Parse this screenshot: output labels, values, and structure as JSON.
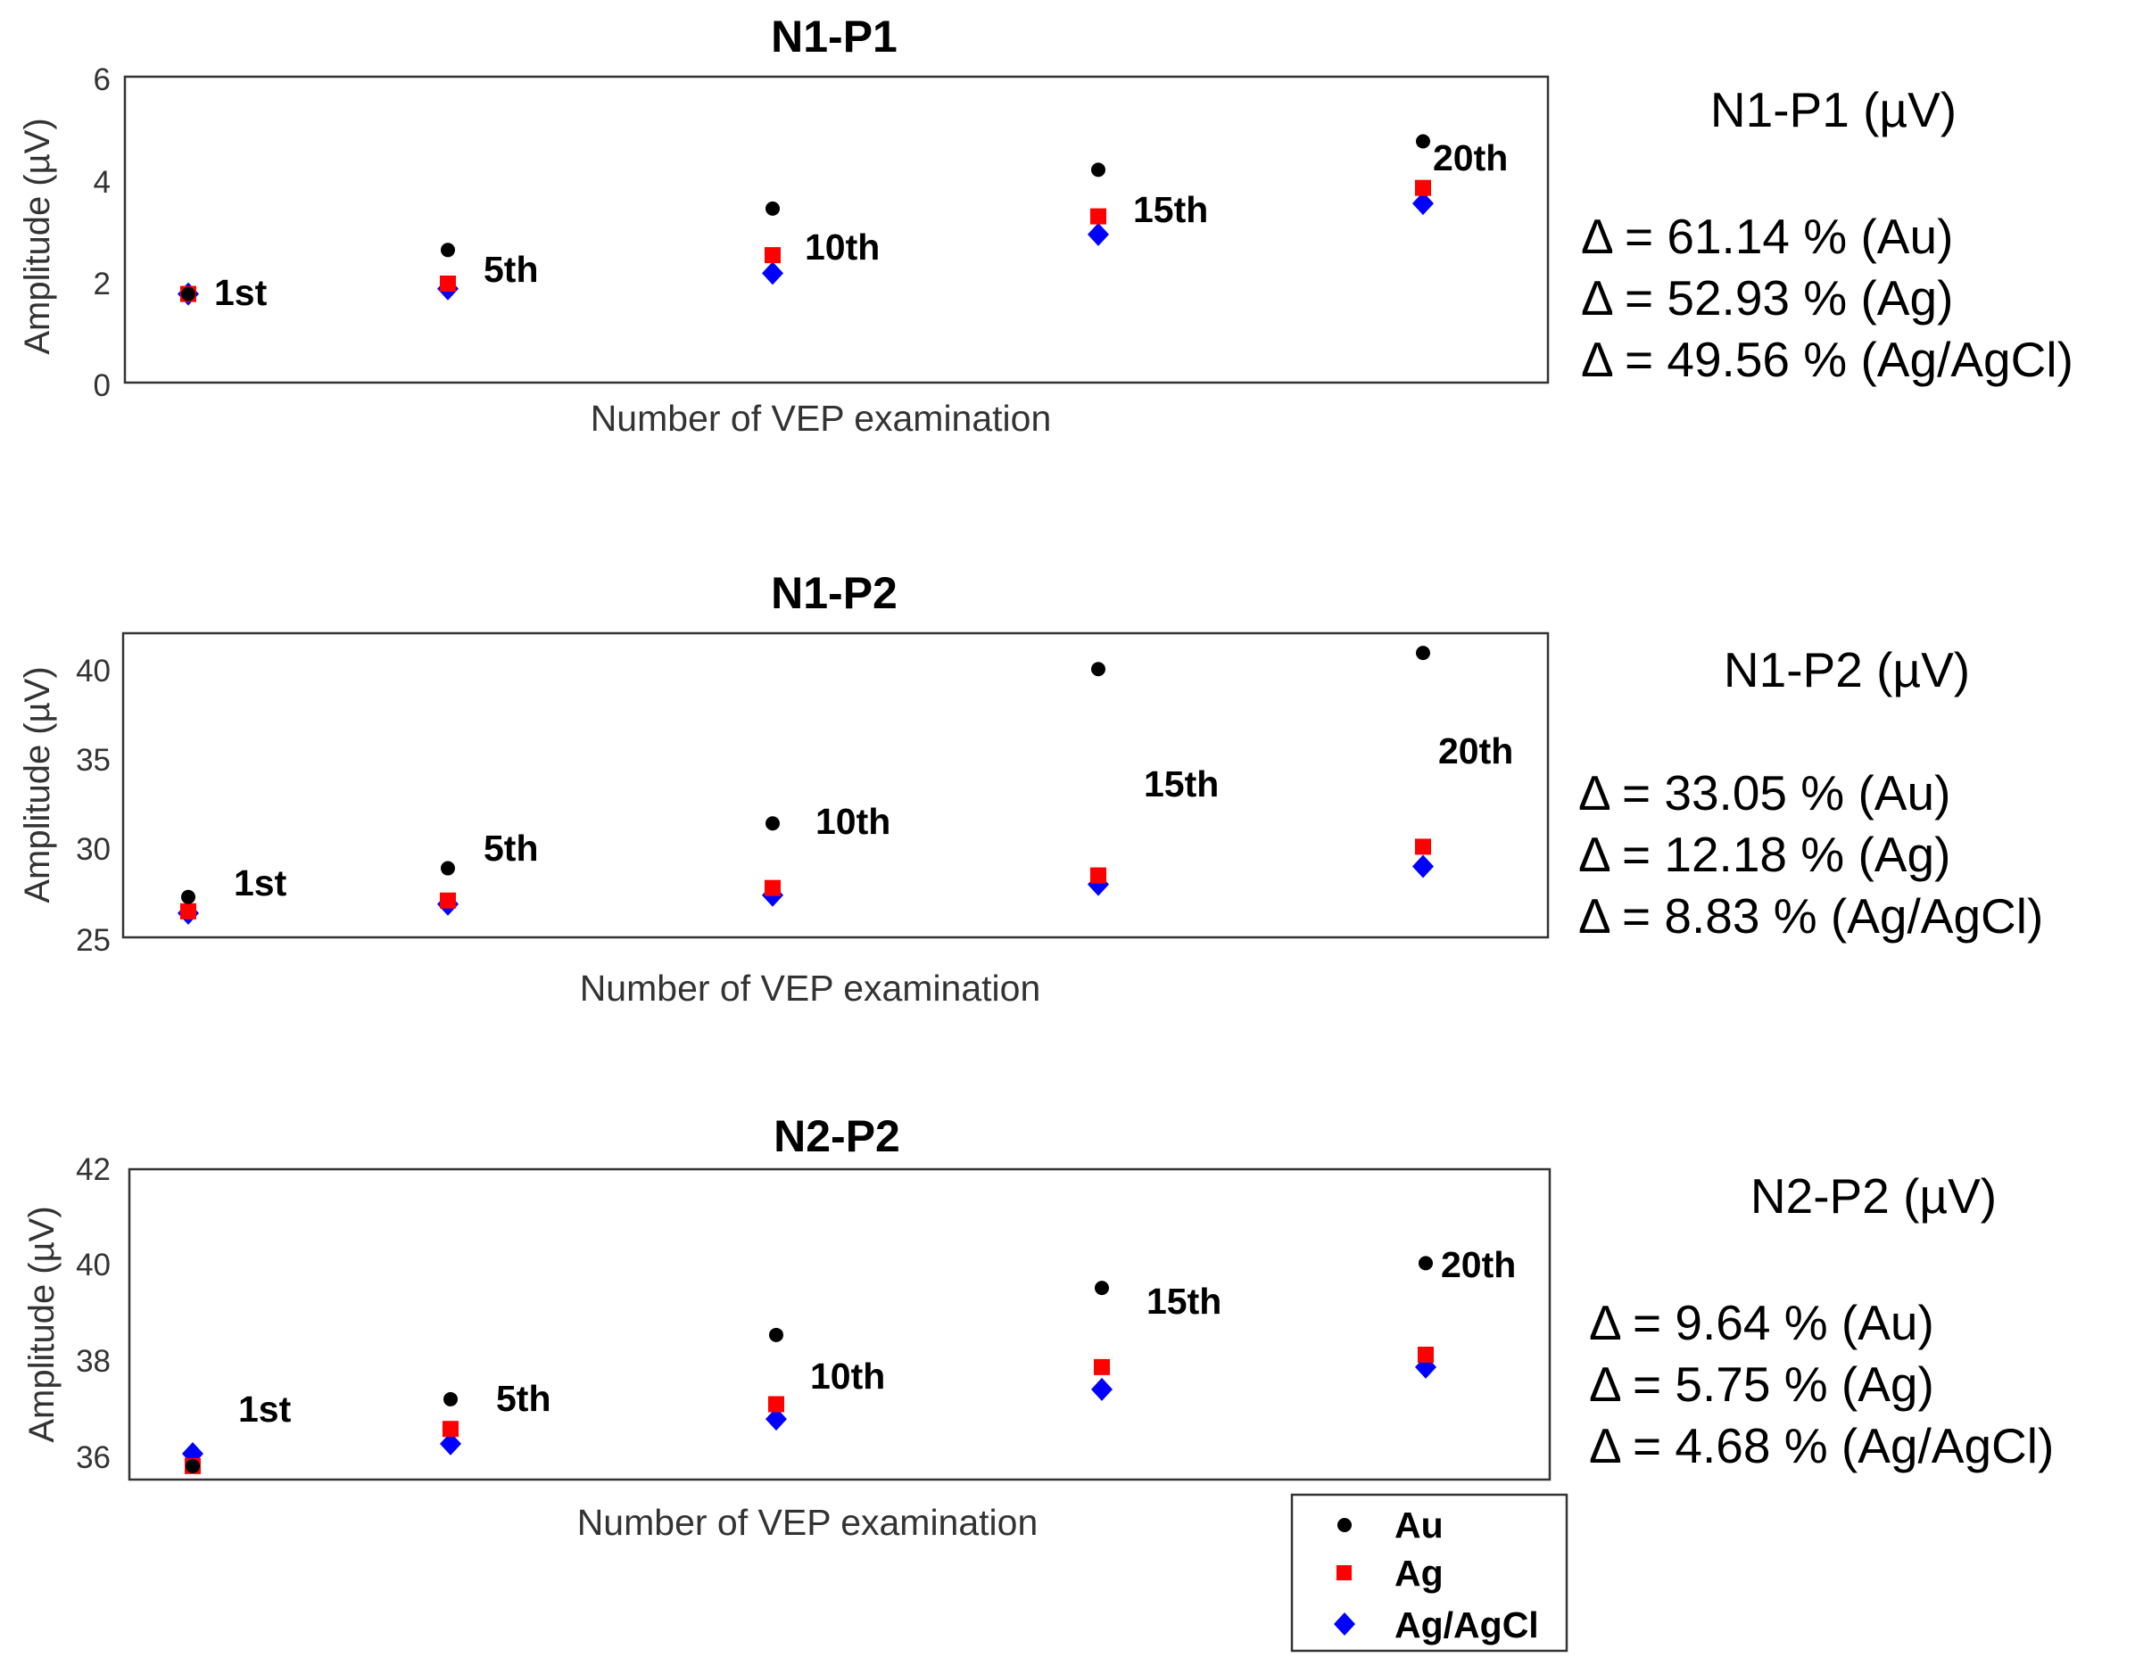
{
  "chart_data": [
    {
      "type": "scatter",
      "title": "N1-P1",
      "xlabel": "Number of VEP examination",
      "ylabel": "Amplitude (µV)",
      "ylim": [
        0,
        6
      ],
      "yticks": [
        "0",
        "2",
        "4",
        "6"
      ],
      "x": [
        "1st",
        "5th",
        "10th",
        "15th",
        "20th"
      ],
      "series": [
        {
          "name": "Au",
          "values": [
            1.8,
            2.65,
            3.45,
            4.2,
            4.75
          ]
        },
        {
          "name": "Ag",
          "values": [
            1.8,
            2.0,
            2.55,
            3.3,
            3.85
          ]
        },
        {
          "name": "Ag/AgCl",
          "values": [
            1.8,
            1.9,
            2.2,
            2.95,
            3.55
          ]
        }
      ],
      "summary": {
        "heading": "N1-P1 (µV)",
        "lines": [
          "Δ = 61.14 % (Au)",
          "Δ = 52.93 % (Ag)",
          "Δ = 49.56 % (Ag/AgCl)"
        ]
      }
    },
    {
      "type": "scatter",
      "title": "N1-P2",
      "xlabel": "Number of VEP examination",
      "ylabel": "Amplitude (µV)",
      "ylim": [
        25,
        42
      ],
      "yticks": [
        "25",
        "30",
        "35",
        "40"
      ],
      "x": [
        "1st",
        "5th",
        "10th",
        "15th",
        "20th"
      ],
      "series": [
        {
          "name": "Au",
          "values": [
            27.3,
            28.9,
            31.4,
            40.0,
            40.9
          ]
        },
        {
          "name": "Ag",
          "values": [
            26.5,
            27.1,
            27.8,
            28.5,
            30.1
          ]
        },
        {
          "name": "Ag/AgCl",
          "values": [
            26.4,
            26.9,
            27.4,
            28.0,
            29.0
          ]
        }
      ],
      "summary": {
        "heading": "N1-P2  (µV)",
        "lines": [
          "Δ = 33.05 % (Au)",
          "Δ = 12.18 % (Ag)",
          "Δ = 8.83 % (Ag/AgCl)"
        ]
      }
    },
    {
      "type": "scatter",
      "title": "N2-P2",
      "xlabel": "Number of VEP examination",
      "ylabel": "Amplitude (µV)",
      "ylim": [
        35.6,
        42
      ],
      "yticks": [
        "36",
        "38",
        "40",
        "42"
      ],
      "x": [
        "1st",
        "5th",
        "10th",
        "15th",
        "20th"
      ],
      "series": [
        {
          "name": "Au",
          "values": [
            36.0,
            37.35,
            38.65,
            39.6,
            40.1
          ]
        },
        {
          "name": "Ag",
          "values": [
            36.0,
            36.75,
            37.25,
            38.0,
            38.25
          ]
        },
        {
          "name": "Ag/AgCl",
          "values": [
            36.25,
            36.45,
            36.95,
            37.55,
            38.0
          ]
        }
      ],
      "summary": {
        "heading": "N2-P2  (µV)",
        "lines": [
          "Δ = 9.64 % (Au)",
          "Δ = 5.75 % (Ag)",
          "Δ = 4.68 % (Ag/AgCl)"
        ]
      }
    }
  ],
  "legend": {
    "entries": [
      {
        "name": "Au",
        "color": "#000000",
        "marker": "circle"
      },
      {
        "name": "Ag",
        "color": "#ff0000",
        "marker": "square"
      },
      {
        "name": "Ag/AgCl",
        "color": "#0000ff",
        "marker": "diamond"
      }
    ]
  },
  "colors": {
    "Au": "#000000",
    "Ag": "#ff0000",
    "Ag/AgCl": "#0000ff"
  }
}
